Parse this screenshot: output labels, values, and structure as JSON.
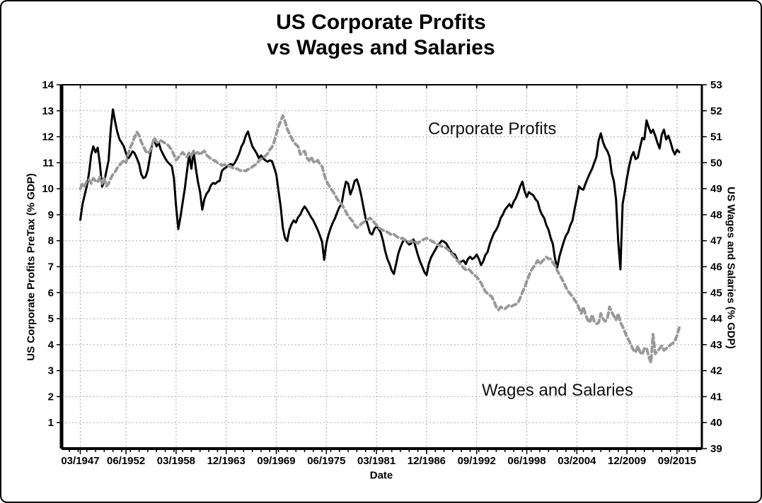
{
  "title": {
    "line1": "US Corporate Profits",
    "line2": "vs Wages and Salaries"
  },
  "annotations": {
    "profits_label": "Corporate Profits",
    "wages_label": "Wages and Salaries"
  },
  "colors": {
    "profits_line": "#000000",
    "wages_line": "#999999",
    "grid": "#aaaaaa",
    "frame": "#000000",
    "text": "#000000"
  },
  "chart_data": {
    "type": "line",
    "title": "US Corporate Profits vs Wages and Salaries",
    "xlabel": "Date",
    "ylabel_left": "US Corporate Profits PreTax (% GDP)",
    "ylabel_right": "US Wages and Salaries (% GDP)",
    "grid": true,
    "legend_position": "none",
    "x_tick_labels": [
      "03/1947",
      "06/1952",
      "03/1958",
      "12/1963",
      "09/1969",
      "06/1975",
      "03/1981",
      "12/1986",
      "09/1992",
      "06/1998",
      "03/2004",
      "12/2009",
      "09/2015"
    ],
    "x_tick_positions": [
      1947.25,
      1952.5,
      1958.25,
      1964.0,
      1969.75,
      1975.5,
      1981.25,
      1987.0,
      1992.75,
      1998.5,
      2004.25,
      2010.0,
      2015.75
    ],
    "xlim": [
      1945.1,
      2018.6
    ],
    "ylim_left": [
      0,
      14
    ],
    "yticks_left": [
      1,
      2,
      3,
      4,
      5,
      6,
      7,
      8,
      9,
      10,
      11,
      12,
      13,
      14
    ],
    "ylim_right": [
      39,
      53
    ],
    "yticks_right": [
      39,
      40,
      41,
      42,
      43,
      44,
      45,
      46,
      47,
      48,
      49,
      50,
      51,
      52,
      53
    ],
    "x_start": 1947.25,
    "x_step": 0.25,
    "series": [
      {
        "name": "Corporate Profits",
        "axis": "left",
        "color": "#000000",
        "line_style": "solid",
        "values": [
          8.8,
          9.4,
          9.75,
          10.1,
          10.6,
          11.3,
          11.63,
          11.4,
          11.58,
          10.95,
          10.08,
          10.27,
          10.68,
          11.09,
          12.31,
          13.05,
          12.58,
          12.18,
          11.9,
          11.77,
          11.63,
          11.36,
          11.17,
          11.28,
          11.44,
          11.36,
          11.17,
          10.95,
          10.55,
          10.41,
          10.46,
          10.73,
          11.23,
          11.71,
          11.86,
          11.63,
          11.77,
          11.5,
          11.33,
          11.17,
          11.04,
          10.95,
          10.87,
          10.41,
          9.32,
          8.45,
          8.92,
          9.46,
          10.0,
          10.68,
          11.31,
          10.77,
          11.45,
          10.82,
          10.27,
          9.87,
          9.19,
          9.6,
          9.81,
          9.92,
          10.14,
          10.22,
          10.19,
          10.27,
          10.3,
          10.68,
          10.77,
          10.82,
          10.9,
          10.95,
          10.9,
          11.0,
          11.17,
          11.36,
          11.63,
          11.77,
          12.05,
          12.2,
          11.9,
          11.63,
          11.5,
          11.36,
          11.17,
          11.28,
          11.17,
          11.09,
          11.04,
          11.09,
          11.06,
          10.82,
          10.55,
          9.92,
          9.32,
          8.51,
          8.1,
          7.99,
          8.42,
          8.64,
          8.78,
          8.7,
          8.9,
          9.0,
          9.19,
          9.32,
          9.2,
          9.05,
          8.9,
          8.78,
          8.6,
          8.42,
          8.2,
          7.96,
          7.26,
          7.9,
          8.24,
          8.5,
          8.7,
          8.87,
          9.1,
          9.3,
          9.41,
          9.9,
          10.27,
          10.2,
          9.78,
          10.0,
          10.3,
          10.36,
          10.1,
          9.73,
          9.3,
          8.87,
          8.6,
          8.3,
          8.24,
          8.45,
          8.55,
          8.45,
          8.3,
          8.0,
          7.6,
          7.3,
          7.1,
          6.85,
          6.72,
          7.1,
          7.5,
          7.75,
          7.95,
          8.05,
          7.95,
          7.85,
          7.9,
          8.05,
          7.75,
          7.45,
          7.2,
          7.0,
          6.8,
          6.67,
          7.1,
          7.35,
          7.5,
          7.65,
          7.8,
          7.9,
          8.0,
          7.96,
          7.9,
          7.75,
          7.6,
          7.5,
          7.47,
          7.3,
          7.15,
          7.2,
          7.24,
          7.1,
          7.3,
          7.38,
          7.29,
          7.35,
          7.47,
          7.3,
          7.06,
          7.2,
          7.45,
          7.56,
          7.87,
          8.1,
          8.3,
          8.42,
          8.6,
          8.87,
          9.0,
          9.19,
          9.3,
          9.41,
          9.28,
          9.5,
          9.64,
          9.85,
          10.1,
          10.27,
          9.91,
          9.68,
          9.87,
          9.8,
          9.75,
          9.6,
          9.5,
          9.19,
          9.0,
          8.87,
          8.6,
          8.42,
          8.1,
          7.87,
          7.3,
          6.96,
          7.4,
          7.69,
          7.96,
          8.2,
          8.33,
          8.6,
          8.78,
          9.23,
          9.64,
          10.09,
          10.0,
          9.96,
          10.2,
          10.41,
          10.6,
          10.77,
          11.0,
          11.23,
          11.86,
          12.13,
          11.8,
          11.59,
          11.45,
          11.23,
          10.6,
          10.3,
          9.6,
          7.96,
          6.9,
          9.41,
          9.87,
          10.41,
          10.86,
          11.23,
          11.41,
          11.14,
          11.2,
          11.59,
          11.95,
          11.9,
          12.63,
          12.36,
          12.15,
          12.27,
          12.04,
          11.77,
          11.55,
          12.09,
          12.27,
          11.9,
          12.04,
          11.8,
          11.5,
          11.32,
          11.5,
          11.41
        ]
      },
      {
        "name": "Wages and Salaries",
        "axis": "right",
        "color": "#999999",
        "line_style": "dashed",
        "values": [
          49.0,
          49.2,
          49.1,
          49.3,
          49.35,
          49.2,
          49.4,
          49.3,
          49.25,
          49.45,
          49.2,
          49.4,
          49.1,
          49.2,
          49.4,
          49.55,
          49.65,
          49.8,
          49.9,
          50.0,
          50.1,
          50.0,
          50.35,
          50.6,
          50.77,
          51.0,
          51.18,
          51.05,
          50.8,
          50.63,
          50.45,
          50.36,
          50.45,
          50.7,
          50.96,
          50.8,
          50.77,
          50.85,
          50.8,
          50.75,
          50.7,
          50.6,
          50.5,
          50.3,
          50.1,
          50.2,
          50.3,
          50.4,
          50.3,
          50.22,
          50.4,
          50.28,
          50.45,
          50.36,
          50.4,
          50.3,
          50.4,
          50.45,
          50.3,
          50.22,
          50.15,
          50.1,
          50.08,
          50.0,
          49.95,
          49.9,
          49.92,
          49.9,
          49.88,
          49.86,
          49.8,
          49.77,
          49.77,
          49.72,
          49.68,
          49.7,
          49.68,
          49.75,
          49.77,
          49.85,
          49.9,
          49.95,
          50.08,
          50.15,
          50.2,
          50.26,
          50.35,
          50.5,
          50.6,
          50.8,
          51.1,
          51.4,
          51.6,
          51.81,
          51.6,
          51.31,
          51.13,
          50.95,
          50.81,
          50.7,
          50.63,
          50.32,
          50.4,
          50.45,
          50.2,
          50.08,
          50.22,
          50.05,
          50.0,
          50.1,
          49.95,
          49.86,
          49.55,
          49.3,
          49.15,
          49.0,
          48.9,
          48.75,
          48.6,
          48.5,
          48.4,
          48.25,
          48.1,
          47.95,
          47.85,
          47.75,
          47.6,
          47.5,
          47.55,
          47.65,
          47.7,
          47.78,
          47.82,
          47.87,
          47.8,
          47.7,
          47.6,
          47.5,
          47.45,
          47.4,
          47.38,
          47.33,
          47.28,
          47.22,
          47.25,
          47.18,
          47.12,
          47.08,
          47.1,
          47.02,
          46.98,
          46.95,
          47.0,
          46.93,
          46.95,
          46.9,
          46.98,
          47.02,
          47.06,
          47.1,
          47.05,
          47.0,
          46.96,
          46.9,
          46.85,
          46.82,
          46.78,
          46.75,
          46.72,
          46.65,
          46.55,
          46.45,
          46.35,
          46.25,
          46.15,
          46.05,
          45.95,
          45.88,
          45.92,
          45.85,
          45.75,
          45.68,
          45.61,
          45.5,
          45.38,
          45.2,
          45.05,
          44.97,
          44.9,
          44.84,
          44.66,
          44.45,
          44.34,
          44.45,
          44.4,
          44.38,
          44.45,
          44.52,
          44.47,
          44.52,
          44.55,
          44.61,
          44.8,
          45.02,
          45.2,
          45.43,
          45.65,
          45.85,
          45.97,
          46.1,
          46.24,
          46.1,
          46.2,
          46.28,
          46.37,
          46.3,
          46.3,
          46.15,
          46.05,
          45.85,
          45.7,
          45.55,
          45.4,
          45.2,
          45.05,
          44.95,
          44.85,
          44.72,
          44.6,
          44.4,
          44.2,
          44.45,
          44.15,
          43.95,
          43.85,
          44.15,
          43.9,
          43.8,
          43.85,
          44.2,
          44.0,
          43.9,
          44.0,
          44.45,
          44.25,
          44.1,
          43.95,
          44.2,
          43.85,
          43.7,
          43.5,
          43.3,
          43.15,
          42.95,
          42.8,
          42.7,
          42.95,
          42.72,
          42.62,
          42.85,
          42.88,
          42.55,
          42.3,
          43.4,
          42.65,
          42.75,
          42.85,
          42.95,
          42.78,
          42.85,
          42.9,
          43.0,
          43.05,
          43.15,
          43.35,
          43.65
        ]
      }
    ]
  }
}
